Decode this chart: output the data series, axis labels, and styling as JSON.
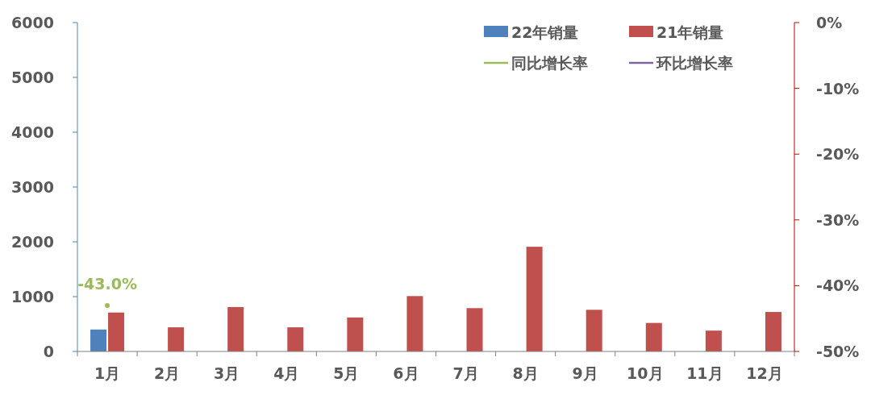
{
  "chart_data": {
    "type": "bar",
    "categories": [
      "1月",
      "2月",
      "3月",
      "4月",
      "5月",
      "6月",
      "7月",
      "8月",
      "9月",
      "10月",
      "11月",
      "12月"
    ],
    "series": [
      {
        "name": "22年销量",
        "color": "#4f81bd",
        "values": [
          400,
          null,
          null,
          null,
          null,
          null,
          null,
          null,
          null,
          null,
          null,
          null
        ]
      },
      {
        "name": "21年销量",
        "color": "#c0504d",
        "values": [
          710,
          440,
          810,
          440,
          620,
          1010,
          790,
          1910,
          760,
          520,
          380,
          720
        ]
      },
      {
        "name": "同比增长率",
        "type": "line",
        "axis": "y2",
        "color": "#9bbb59",
        "values": [
          -43.0,
          null,
          null,
          null,
          null,
          null,
          null,
          null,
          null,
          null,
          null,
          null
        ],
        "value_labels": [
          "-43.0%",
          null,
          null,
          null,
          null,
          null,
          null,
          null,
          null,
          null,
          null,
          null
        ]
      },
      {
        "name": "环比增长率",
        "type": "line",
        "axis": "y2",
        "color": "#8064a2",
        "values": [
          null,
          null,
          null,
          null,
          null,
          null,
          null,
          null,
          null,
          null,
          null,
          null
        ]
      }
    ],
    "ylim": [
      0,
      6000
    ],
    "yticks": [
      0,
      1000,
      2000,
      3000,
      4000,
      5000,
      6000
    ],
    "y2lim": [
      -50,
      0
    ],
    "y2ticks": [
      {
        "value": -50,
        "label": "-50%"
      },
      {
        "value": -40,
        "label": "-40%"
      },
      {
        "value": -30,
        "label": "-30%"
      },
      {
        "value": -20,
        "label": "-20%"
      },
      {
        "value": -10,
        "label": "-10%"
      },
      {
        "value": 0,
        "label": "0%"
      }
    ],
    "grid": false,
    "legend": "top right",
    "marker": "circle"
  }
}
